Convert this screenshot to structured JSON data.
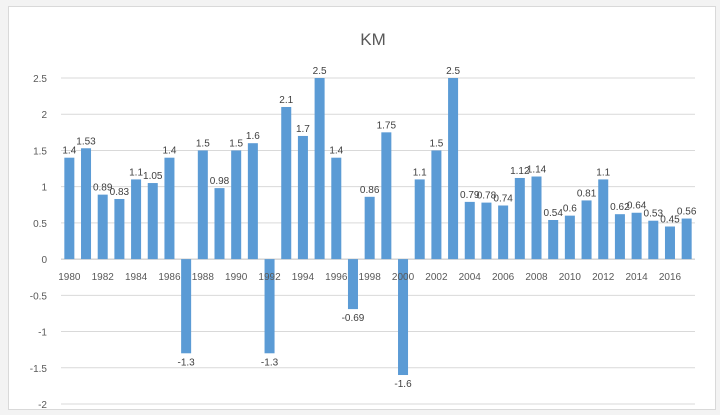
{
  "chart_data": {
    "type": "bar",
    "title": "KM",
    "xlabel": "",
    "ylabel": "",
    "ylim": [
      -2,
      2.5
    ],
    "yticks": [
      2.5,
      2,
      1.5,
      1,
      0.5,
      0,
      -0.5,
      -1,
      -1.5,
      -2
    ],
    "grid": true,
    "legend": "none",
    "bar_color": "#5b9bd5",
    "categories": [
      "1980",
      "1981",
      "1982",
      "1983",
      "1984",
      "1985",
      "1986",
      "1987",
      "1988",
      "1989",
      "1990",
      "1991",
      "1992",
      "1993",
      "1994",
      "1995",
      "1996",
      "1997",
      "1998",
      "1999",
      "2000",
      "2001",
      "2002",
      "2003",
      "2004",
      "2005",
      "2006",
      "2007",
      "2008",
      "2009",
      "2010",
      "2011",
      "2012",
      "2013",
      "2014",
      "2015",
      "2016",
      "2017"
    ],
    "x_tick_labels": [
      "1980",
      "1982",
      "1984",
      "1986",
      "1988",
      "1990",
      "1992",
      "1994",
      "1996",
      "1998",
      "2000",
      "2002",
      "2004",
      "2006",
      "2008",
      "2010",
      "2012",
      "2014",
      "2016"
    ],
    "values": [
      1.4,
      1.53,
      0.89,
      0.83,
      1.1,
      1.05,
      1.4,
      -1.3,
      1.5,
      0.98,
      1.5,
      1.6,
      -1.3,
      2.1,
      1.7,
      2.5,
      1.4,
      -0.69,
      0.86,
      1.75,
      -1.6,
      1.1,
      1.5,
      2.5,
      0.79,
      0.78,
      0.74,
      1.12,
      1.14,
      0.54,
      0.6,
      0.81,
      1.1,
      0.62,
      0.64,
      0.53,
      0.45,
      0.56
    ],
    "data_labels": [
      "1.4",
      "1.53",
      "0.89",
      "0.83",
      "1.1",
      "1.05",
      "1.4",
      "-1.3",
      "1.5",
      "0.98",
      "1.5",
      "1.6",
      "-1.3",
      "2.1",
      "1.7",
      "2.5",
      "1.4",
      "-0.69",
      "0.86",
      "1.75",
      "-1.6",
      "1.1",
      "1.5",
      "2.5",
      "0.79",
      "0.78",
      "0.74",
      "1.12",
      "1.14",
      "0.54",
      "0.6",
      "0.81",
      "1.1",
      "0.62",
      "0.64",
      "0.53",
      "0.45",
      "0.56"
    ]
  }
}
